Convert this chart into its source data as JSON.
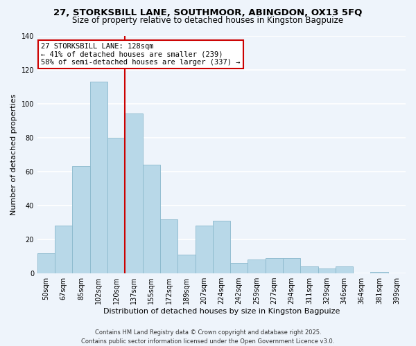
{
  "title_line1": "27, STORKSBILL LANE, SOUTHMOOR, ABINGDON, OX13 5FQ",
  "title_line2": "Size of property relative to detached houses in Kingston Bagpuize",
  "xlabel": "Distribution of detached houses by size in Kingston Bagpuize",
  "ylabel": "Number of detached properties",
  "bar_labels": [
    "50sqm",
    "67sqm",
    "85sqm",
    "102sqm",
    "120sqm",
    "137sqm",
    "155sqm",
    "172sqm",
    "189sqm",
    "207sqm",
    "224sqm",
    "242sqm",
    "259sqm",
    "277sqm",
    "294sqm",
    "311sqm",
    "329sqm",
    "346sqm",
    "364sqm",
    "381sqm",
    "399sqm"
  ],
  "bar_values": [
    12,
    28,
    63,
    113,
    80,
    94,
    64,
    32,
    11,
    28,
    31,
    6,
    8,
    9,
    9,
    4,
    3,
    4,
    0,
    1,
    0
  ],
  "bar_color": "#b8d8e8",
  "bar_edge_color": "#8ab8cc",
  "vline_color": "#cc0000",
  "annotation_text": "27 STORKSBILL LANE: 128sqm\n← 41% of detached houses are smaller (239)\n58% of semi-detached houses are larger (337) →",
  "annotation_box_color": "white",
  "annotation_box_edge": "#cc0000",
  "ylim": [
    0,
    140
  ],
  "yticks": [
    0,
    20,
    40,
    60,
    80,
    100,
    120,
    140
  ],
  "footer_line1": "Contains HM Land Registry data © Crown copyright and database right 2025.",
  "footer_line2": "Contains public sector information licensed under the Open Government Licence v3.0.",
  "background_color": "#eef4fb",
  "grid_color": "white",
  "title_fontsize": 9.5,
  "subtitle_fontsize": 8.5,
  "xlabel_fontsize": 8,
  "ylabel_fontsize": 8,
  "tick_fontsize": 7,
  "annotation_fontsize": 7.5,
  "footer_fontsize": 6
}
